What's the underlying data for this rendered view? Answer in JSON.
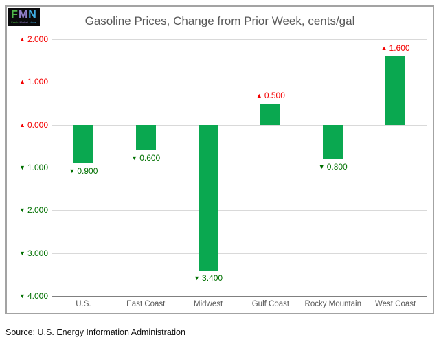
{
  "source_note": "Source: U.S. Energy Information Administration",
  "logo": {
    "background": "#0A0A0C",
    "letters": [
      {
        "char": "F",
        "color": "#4EB748"
      },
      {
        "char": "M",
        "color": "#8F7EC8"
      },
      {
        "char": "N",
        "color": "#3FADE3"
      }
    ],
    "subtext_words": [
      {
        "text": "Fresh",
        "color": "#4EB748"
      },
      {
        "text": "Market",
        "color": "#8F7EC8"
      },
      {
        "text": "News",
        "color": "#3FADE3"
      }
    ]
  },
  "glyphs": {
    "up": "▲",
    "down": "▼"
  },
  "colors": {
    "bar_green": "#0AA850",
    "label_red": "#F40000",
    "label_green": "#007000",
    "axis_text": "#595959",
    "gridline": "#D9D9D9",
    "axis_line": "#808080",
    "chart_border": "#A3A3A3"
  },
  "chart_data": {
    "type": "bar",
    "title": "Gasoline Prices, Change from Prior Week, cents/gal",
    "categories": [
      "U.S.",
      "East Coast",
      "Midwest",
      "Gulf Coast",
      "Rocky Mountain",
      "West Coast"
    ],
    "values": [
      -0.9,
      -0.6,
      -3.4,
      0.5,
      -0.8,
      1.6
    ],
    "data_labels": [
      {
        "direction": "down",
        "text": "0.900"
      },
      {
        "direction": "down",
        "text": "0.600"
      },
      {
        "direction": "down",
        "text": "3.400"
      },
      {
        "direction": "up",
        "text": "0.500"
      },
      {
        "direction": "down",
        "text": "0.800"
      },
      {
        "direction": "up",
        "text": "1.600"
      }
    ],
    "y_ticks": [
      {
        "direction": "up",
        "text": "2.000",
        "value": 2
      },
      {
        "direction": "up",
        "text": "1.000",
        "value": 1
      },
      {
        "direction": "up",
        "text": "0.000",
        "value": 0
      },
      {
        "direction": "down",
        "text": "1.000",
        "value": -1
      },
      {
        "direction": "down",
        "text": "2.000",
        "value": -2
      },
      {
        "direction": "down",
        "text": "3.000",
        "value": -3
      },
      {
        "direction": "down",
        "text": "4.000",
        "value": -4
      }
    ],
    "ylim": [
      -4,
      2
    ],
    "grid": true,
    "legend": false,
    "xlabel": "",
    "ylabel": "",
    "bar_color": "#0AA850"
  }
}
